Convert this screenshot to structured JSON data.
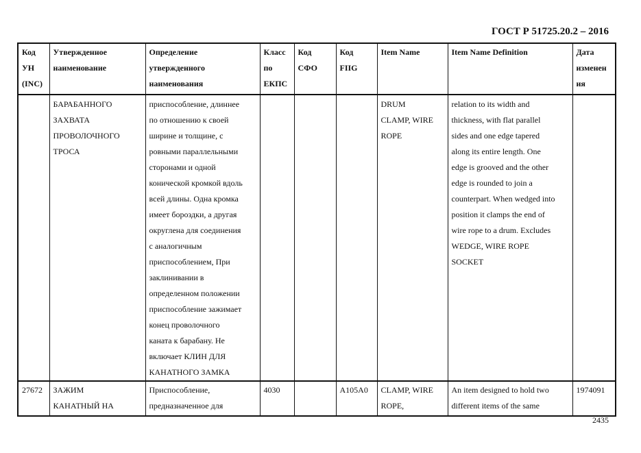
{
  "header": {
    "title": "ГОСТ Р 51725.20.2 – 2016"
  },
  "table": {
    "columns": [
      [
        "Код",
        "УН",
        "(INC)"
      ],
      [
        "Утвержденное",
        "наименование"
      ],
      [
        "Определение",
        "утвержденного",
        "наименования"
      ],
      [
        "Класс",
        "по",
        "ЕКПС"
      ],
      [
        "Код",
        "СФО"
      ],
      [
        "Код",
        "FIIG"
      ],
      [
        "Item Name"
      ],
      [
        "Item Name Definition"
      ],
      [
        "Дата",
        "изменен",
        "ия"
      ]
    ],
    "rows": [
      {
        "inc": [],
        "name": [
          "БАРАБАННОГО",
          "ЗАХВАТА",
          "ПРОВОЛОЧНОГО",
          "ТРОСА"
        ],
        "definition": [
          "приспособление, длиннее",
          "по отношению к своей",
          "ширине и толщине, с",
          "ровными параллельными",
          "сторонами и одной",
          "конической кромкой вдоль",
          "всей длины.  Одна кромка",
          "имеет бороздки,  а другая",
          "округлена для соединения",
          "с аналогичным",
          "приспособлением, При",
          "заклинивании в",
          "определенном положении",
          "приспособление зажимает",
          "конец проволочного",
          "каната к барабану. Не",
          "включает КЛИН ДЛЯ",
          "КАНАТНОГО ЗАМКА"
        ],
        "class": [],
        "sfo": [],
        "fiig": [],
        "item_name": [
          "DRUM",
          "CLAMP, WIRE",
          "ROPE"
        ],
        "item_definition": [
          "relation to its width and",
          "thickness, with flat parallel",
          "sides and one edge tapered",
          "along its entire length. One",
          "edge is grooved and the other",
          "edge is rounded to join a",
          "counterpart. When wedged into",
          "position it clamps the end of",
          "wire rope to a drum. Excludes",
          "WEDGE, WIRE ROPE",
          "SOCKET"
        ],
        "date": []
      },
      {
        "inc": [
          "27672"
        ],
        "name": [
          "ЗАЖИМ",
          "КАНАТНЫЙ НА"
        ],
        "definition": [
          "Приспособление,",
          "предназначенное для"
        ],
        "class": [
          "4030"
        ],
        "sfo": [],
        "fiig": [
          "A105A0"
        ],
        "item_name": [
          "CLAMP, WIRE",
          "ROPE,"
        ],
        "item_definition": [
          "An item designed to hold two",
          "different items of the same"
        ],
        "date": [
          "1974091"
        ]
      }
    ]
  },
  "footer": {
    "page_number": "2435"
  }
}
